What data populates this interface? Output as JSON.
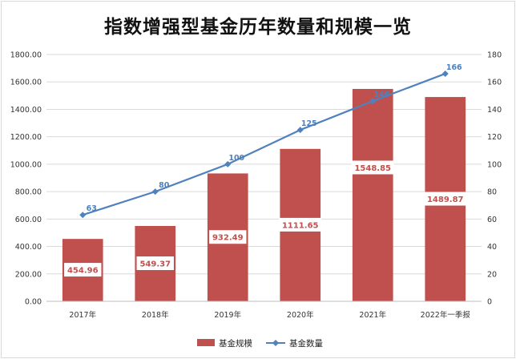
{
  "title": "指数增强型基金历年数量和规模一览",
  "colors": {
    "bar": "#c0504d",
    "line": "#4f81bd",
    "grid": "#d9d9d9"
  },
  "chart_data": {
    "type": "bar",
    "categories": [
      "2017年",
      "2018年",
      "2019年",
      "2020年",
      "2021年",
      "2022年一季报"
    ],
    "series": [
      {
        "name": "基金规模",
        "type": "bar",
        "axis": "left",
        "values": [
          454.96,
          549.37,
          932.49,
          1111.65,
          1548.85,
          1489.87
        ]
      },
      {
        "name": "基金数量",
        "type": "line",
        "axis": "right",
        "values": [
          63,
          80,
          100,
          125,
          146,
          166
        ]
      }
    ],
    "bar_labels": [
      "454.96",
      "549.37",
      "932.49",
      "1111.65",
      "1548.85",
      "1489.87"
    ],
    "line_labels": [
      "63",
      "80",
      "100",
      "125",
      "146",
      "166"
    ],
    "y_left": {
      "ylim": [
        0,
        1800
      ],
      "step": 200,
      "ticks": [
        "0.00",
        "200.00",
        "400.00",
        "600.00",
        "800.00",
        "1000.00",
        "1200.00",
        "1400.00",
        "1600.00",
        "1800.00"
      ]
    },
    "y_right": {
      "ylim": [
        0,
        180
      ],
      "step": 20,
      "ticks": [
        "0",
        "20",
        "40",
        "60",
        "80",
        "100",
        "120",
        "140",
        "160",
        "180"
      ]
    },
    "grid": true,
    "legend_position": "bottom",
    "legend": [
      "基金规模",
      "基金数量"
    ]
  }
}
